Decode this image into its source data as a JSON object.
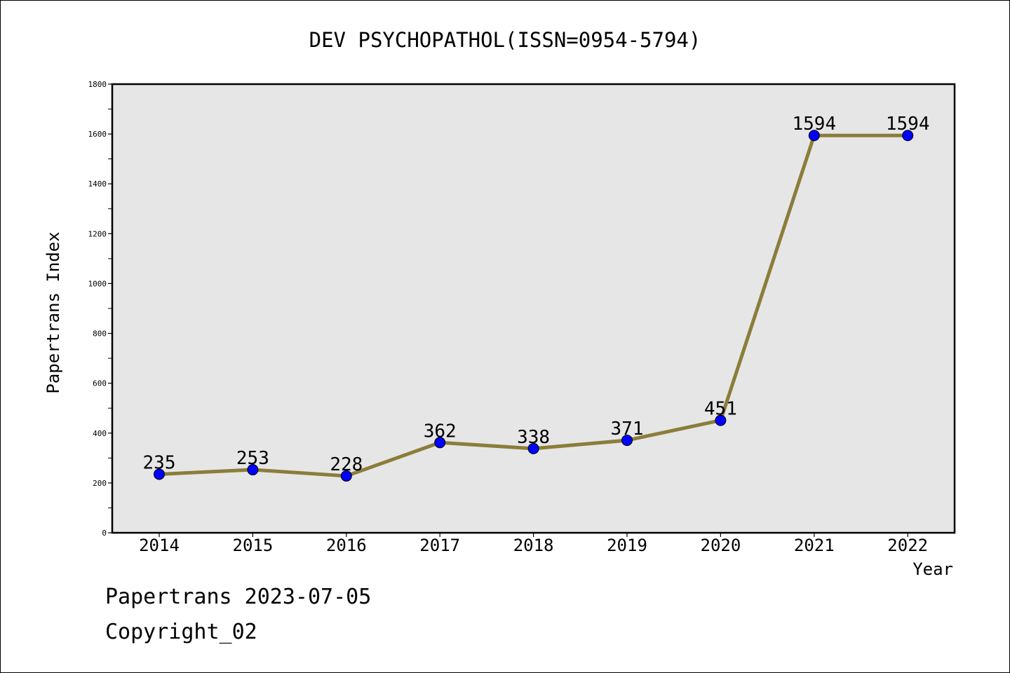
{
  "chart_data": {
    "type": "line",
    "title": "DEV PSYCHOPATHOL(ISSN=0954-5794)",
    "xlabel": "Year",
    "ylabel": "Papertrans Index",
    "categories": [
      "2014",
      "2015",
      "2016",
      "2017",
      "2018",
      "2019",
      "2020",
      "2021",
      "2022"
    ],
    "series": [
      {
        "values": [
          235,
          253,
          228,
          362,
          338,
          371,
          451,
          1594,
          1594
        ]
      }
    ],
    "ylim": [
      0,
      1800
    ],
    "yticks": [
      0,
      200,
      400,
      600,
      800,
      1000,
      1200,
      1400,
      1600,
      1800
    ],
    "grid": false,
    "data_labels": true,
    "colors": {
      "line": "#8B7D3A",
      "marker": "#0000FF",
      "plot_background": "#E6E6E6"
    }
  },
  "footer": {
    "line1": "Papertrans 2023-07-05",
    "line2": "Copyright_02"
  }
}
